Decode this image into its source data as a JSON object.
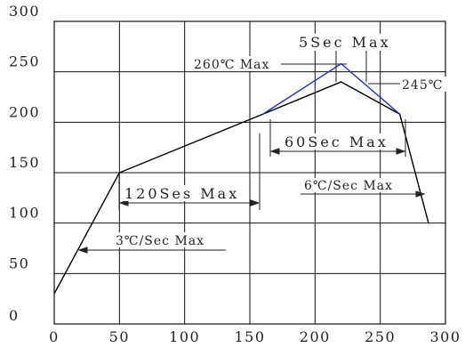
{
  "chart_data": {
    "type": "line",
    "xlim": [
      0,
      300
    ],
    "ylim": [
      0,
      300
    ],
    "x_ticks": [
      "0",
      "50",
      "100",
      "150",
      "200",
      "250",
      "300"
    ],
    "y_ticks": [
      "0",
      "50",
      "100",
      "150",
      "200",
      "250",
      "300"
    ],
    "grid": true,
    "series": [
      {
        "color": "#000000",
        "points": [
          [
            0,
            30
          ],
          [
            50,
            150
          ],
          [
            160,
            208
          ],
          [
            220,
            240
          ],
          [
            265,
            208
          ],
          [
            287,
            100
          ]
        ]
      },
      {
        "color": "#1f2fd0",
        "points": [
          [
            160,
            208
          ],
          [
            220,
            258
          ],
          [
            265,
            208
          ]
        ]
      }
    ],
    "annotations": {
      "rate_up": "3℃/Sec Max",
      "time_120": "120Ses Max",
      "time_60": "60Sec Max",
      "time_5": "5Sec Max",
      "peak_260": "260℃ Max",
      "peak_245": "245℃",
      "rate_down": "6℃/Sec Max"
    }
  }
}
